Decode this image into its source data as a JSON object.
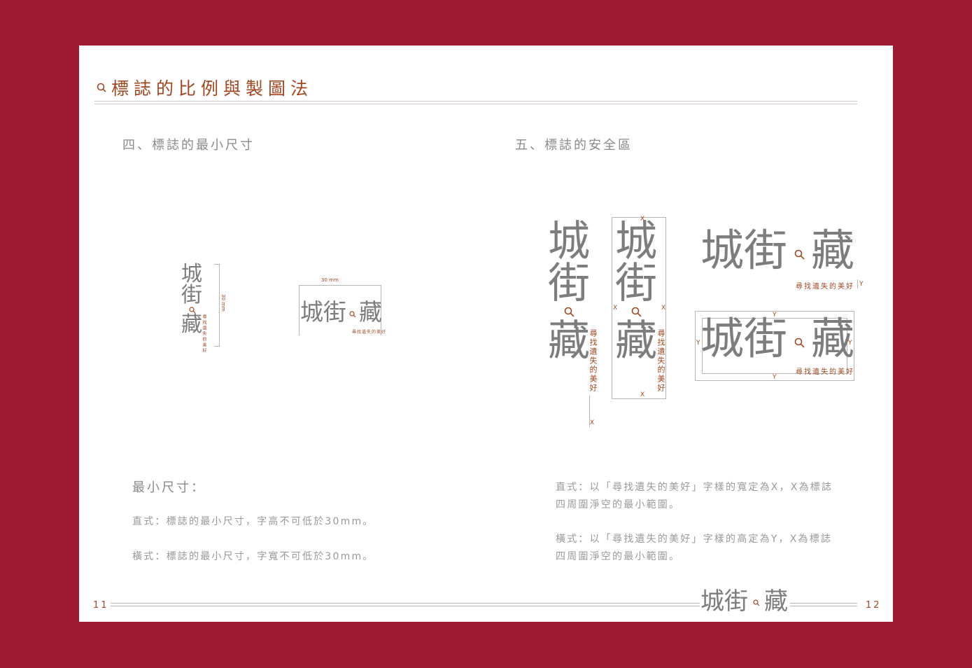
{
  "header": {
    "title": "標誌的比例與製圖法"
  },
  "left": {
    "section_title": "四、標誌的最小尺寸",
    "dimension_label": "30 mm",
    "min_size_heading": "最小尺寸：",
    "vertical_note": "直式：標誌的最小尺寸，字高不可低於30mm。",
    "horizontal_note": "橫式：標誌的最小尺寸，字寬不可低於30mm。"
  },
  "right": {
    "section_title": "五、標誌的安全區",
    "mark_x": "X",
    "mark_y": "Y",
    "vertical_desc_line1": "直式：以「尋找遺失的美好」字樣的寬定為X，X為標誌",
    "vertical_desc_line2": "四周圍淨空的最小範圍。",
    "horizontal_desc_line1": "橫式：以「尋找遺失的美好」字樣的高定為Y，X為標誌",
    "horizontal_desc_line2": "四周圍淨空的最小範圍。"
  },
  "logo": {
    "char1": "城",
    "char2": "街",
    "char3": "藏",
    "slogan": "尋找遺失的美好"
  },
  "footer": {
    "page_left": "11",
    "page_right": "12"
  },
  "colors": {
    "background": "#9c1b33",
    "accent": "#a1471f",
    "logo_gray": "#7d7d7d",
    "text_gray": "#9a9a9a"
  }
}
